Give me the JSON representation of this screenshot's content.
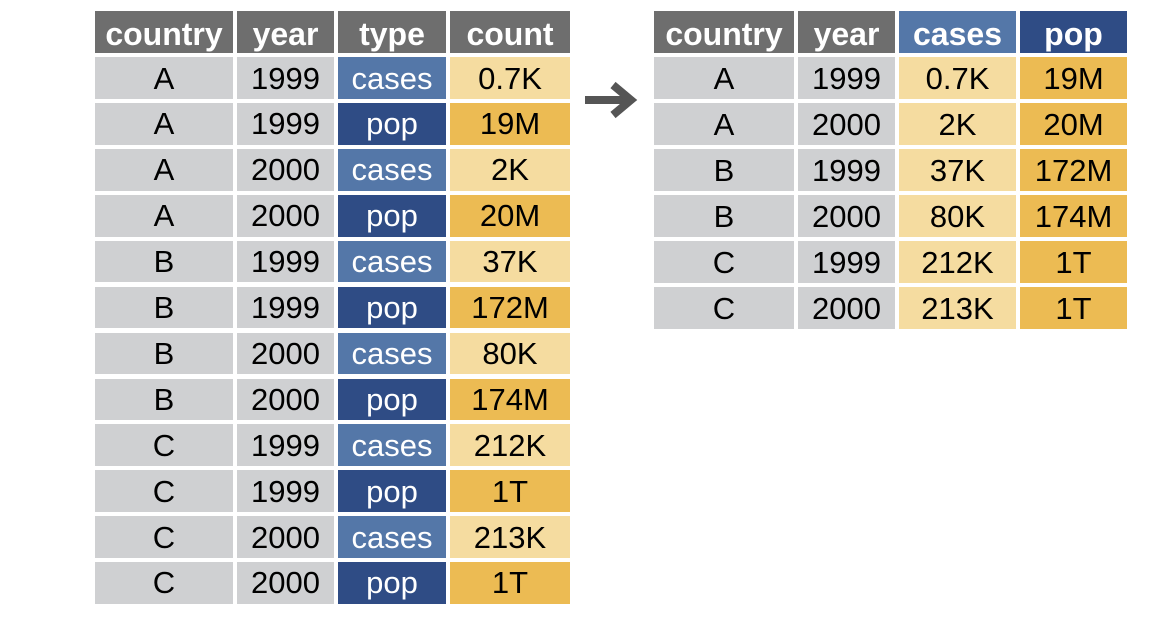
{
  "long_table": {
    "headers": [
      "country",
      "year",
      "type",
      "count"
    ],
    "rows": [
      [
        "A",
        "1999",
        "cases",
        "0.7K"
      ],
      [
        "A",
        "1999",
        "pop",
        "19M"
      ],
      [
        "A",
        "2000",
        "cases",
        "2K"
      ],
      [
        "A",
        "2000",
        "pop",
        "20M"
      ],
      [
        "B",
        "1999",
        "cases",
        "37K"
      ],
      [
        "B",
        "1999",
        "pop",
        "172M"
      ],
      [
        "B",
        "2000",
        "cases",
        "80K"
      ],
      [
        "B",
        "2000",
        "pop",
        "174M"
      ],
      [
        "C",
        "1999",
        "cases",
        "212K"
      ],
      [
        "C",
        "1999",
        "pop",
        "1T"
      ],
      [
        "C",
        "2000",
        "cases",
        "213K"
      ],
      [
        "C",
        "2000",
        "pop",
        "1T"
      ]
    ]
  },
  "wide_table": {
    "headers": [
      "country",
      "year",
      "cases",
      "pop"
    ],
    "rows": [
      [
        "A",
        "1999",
        "0.7K",
        "19M"
      ],
      [
        "A",
        "2000",
        "2K",
        "20M"
      ],
      [
        "B",
        "1999",
        "37K",
        "172M"
      ],
      [
        "B",
        "2000",
        "80K",
        "174M"
      ],
      [
        "C",
        "1999",
        "212K",
        "1T"
      ],
      [
        "C",
        "2000",
        "213K",
        "1T"
      ]
    ]
  },
  "colors": {
    "header_gray": "#6e6e6e",
    "cases_blue": "#5477a8",
    "pop_blue": "#2f4c85",
    "key_gray": "#cfd0d2",
    "cases_yellow": "#f5dca0",
    "pop_yellow": "#ecbb53",
    "arrow": "#555555"
  },
  "arrow_icon": "right-arrow-icon"
}
